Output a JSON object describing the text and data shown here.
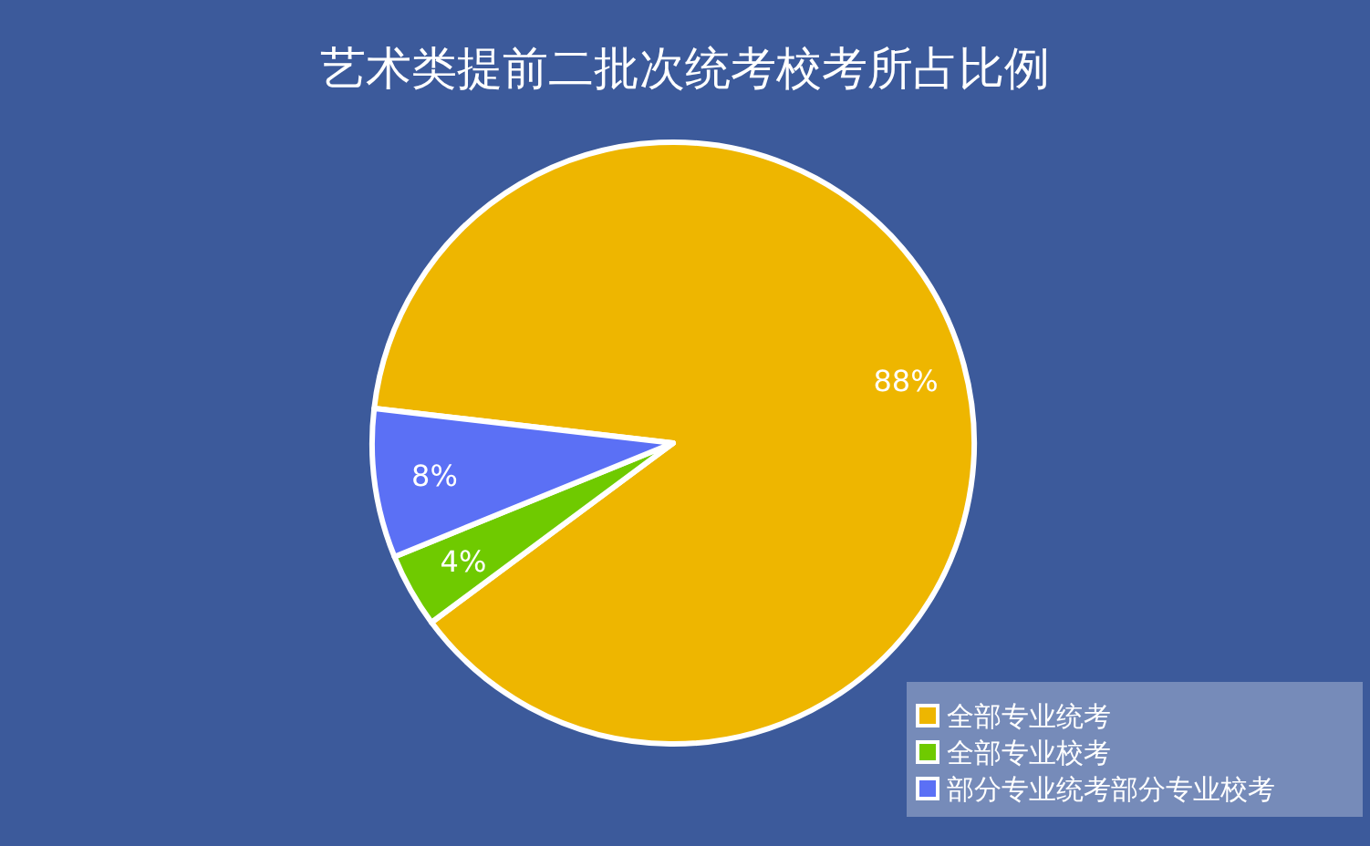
{
  "chart_data": {
    "type": "pie",
    "title": "艺术类提前二批次统考校考所占比例",
    "categories": [
      "全部专业统考",
      "全部专业校考",
      "部分专业统考部分专业校考"
    ],
    "values": [
      88,
      4,
      8
    ],
    "colors": [
      "#eeb600",
      "#6fca00",
      "#5b70f5"
    ],
    "value_labels": [
      "88%",
      "4%",
      "8%"
    ],
    "legend": "bottom right"
  }
}
